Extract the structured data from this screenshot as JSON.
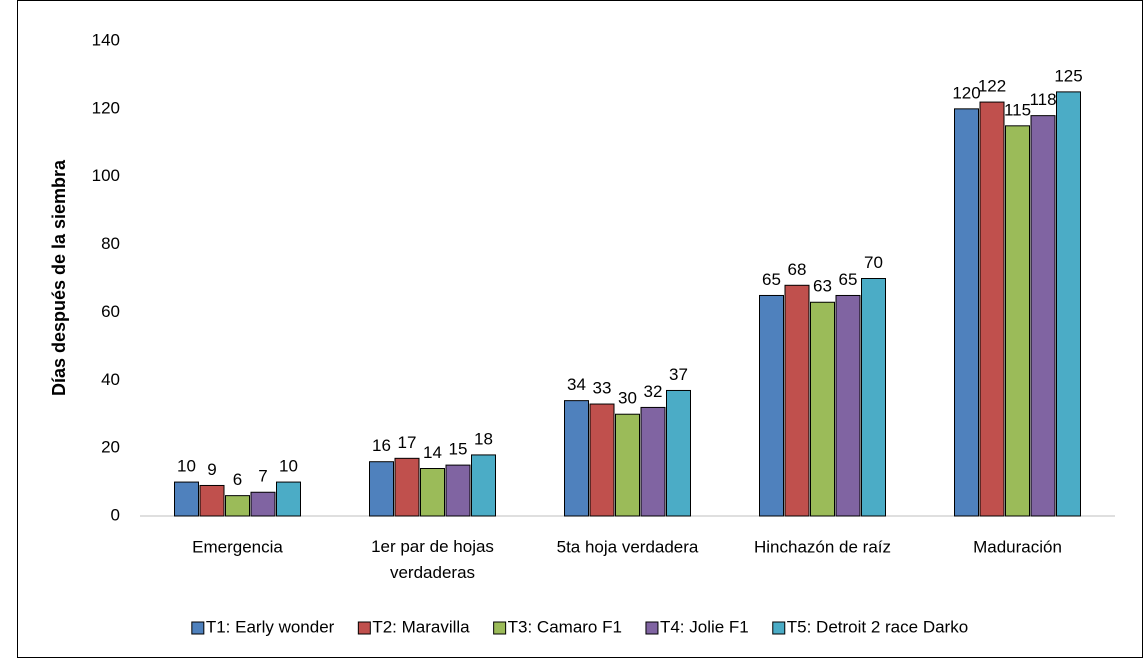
{
  "chart_data": {
    "type": "bar",
    "y_label": "Días después de la siembra",
    "categories": [
      "Emergencia",
      "1er par de hojas verdaderas",
      "5ta hoja verdadera",
      "Hinchazón de raíz",
      "Maduración"
    ],
    "series": [
      {
        "name": "T1: Early wonder",
        "color": "#4f81bd",
        "values": [
          10,
          16,
          34,
          65,
          120
        ]
      },
      {
        "name": "T2: Maravilla",
        "color": "#c0504d",
        "values": [
          9,
          17,
          33,
          68,
          122
        ]
      },
      {
        "name": "T3: Camaro F1",
        "color": "#9bbb59",
        "values": [
          6,
          14,
          30,
          63,
          115
        ]
      },
      {
        "name": "T4: Jolie F1",
        "color": "#8064a2",
        "values": [
          7,
          15,
          32,
          65,
          118
        ]
      },
      {
        "name": "T5: Detroit 2 race Darko",
        "color": "#4bacc6",
        "values": [
          10,
          18,
          37,
          70,
          125
        ]
      }
    ],
    "ylim": [
      0,
      140
    ],
    "yticks": [
      0,
      20,
      40,
      60,
      80,
      100,
      120,
      140
    ],
    "grid": false,
    "legend": "bottom",
    "data_labels": true
  }
}
